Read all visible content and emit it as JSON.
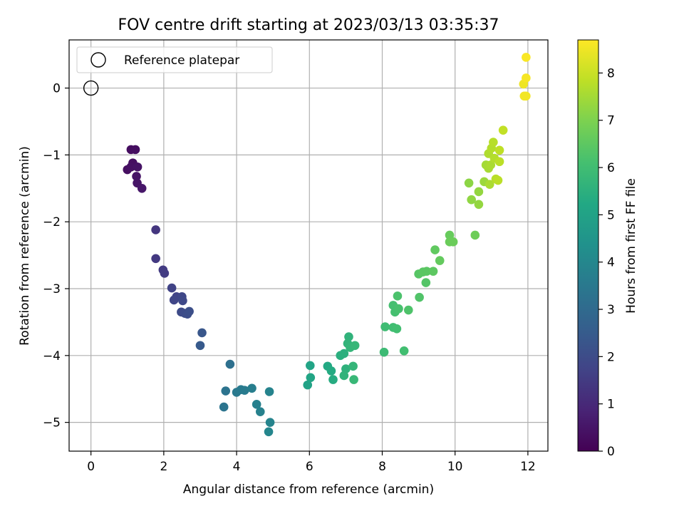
{
  "chart_data": {
    "type": "scatter",
    "title": "FOV centre drift starting at 2023/03/13 03:35:37",
    "xlabel": "Angular distance from reference (arcmin)",
    "ylabel": "Rotation from reference (arcmin)",
    "xlim": [
      -0.6,
      12.55
    ],
    "ylim": [
      -5.43,
      0.72
    ],
    "xticks": [
      0,
      2,
      4,
      6,
      8,
      10,
      12
    ],
    "yticks": [
      0,
      -1,
      -2,
      -3,
      -4,
      -5
    ],
    "xtick_labels": [
      "0",
      "2",
      "4",
      "6",
      "8",
      "10",
      "12"
    ],
    "ytick_labels": [
      "0",
      "−1",
      "−2",
      "−3",
      "−4",
      "−5"
    ],
    "grid": true,
    "legend": {
      "placement": "top-left",
      "entries": [
        "Reference platepar"
      ]
    },
    "reference_point": {
      "x": 0,
      "y": 0
    },
    "colorbar": {
      "label": "Hours from first FF file",
      "colormap": "viridis",
      "range": [
        0,
        8.7
      ],
      "ticks": [
        0,
        1,
        2,
        3,
        4,
        5,
        6,
        7,
        8
      ],
      "tick_labels": [
        "0",
        "1",
        "2",
        "3",
        "4",
        "5",
        "6",
        "7",
        "8"
      ]
    },
    "points": [
      {
        "x": 1.1,
        "y": -0.92,
        "c": 0.3
      },
      {
        "x": 1.22,
        "y": -0.92,
        "c": 0.32
      },
      {
        "x": 1.15,
        "y": -1.12,
        "c": 0.35
      },
      {
        "x": 1.0,
        "y": -1.22,
        "c": 0.35
      },
      {
        "x": 1.1,
        "y": -1.18,
        "c": 0.4
      },
      {
        "x": 1.28,
        "y": -1.18,
        "c": 0.45
      },
      {
        "x": 1.25,
        "y": -1.32,
        "c": 0.48
      },
      {
        "x": 1.27,
        "y": -1.42,
        "c": 0.5
      },
      {
        "x": 1.4,
        "y": -1.5,
        "c": 0.55
      },
      {
        "x": 1.78,
        "y": -2.12,
        "c": 1.35
      },
      {
        "x": 1.78,
        "y": -2.55,
        "c": 1.45
      },
      {
        "x": 1.98,
        "y": -2.72,
        "c": 1.5
      },
      {
        "x": 2.02,
        "y": -2.77,
        "c": 1.55
      },
      {
        "x": 2.22,
        "y": -2.99,
        "c": 1.7
      },
      {
        "x": 2.35,
        "y": -3.12,
        "c": 1.75
      },
      {
        "x": 2.28,
        "y": -3.17,
        "c": 1.8
      },
      {
        "x": 2.5,
        "y": -3.12,
        "c": 1.85
      },
      {
        "x": 2.52,
        "y": -3.18,
        "c": 1.9
      },
      {
        "x": 2.48,
        "y": -3.35,
        "c": 1.95
      },
      {
        "x": 2.58,
        "y": -3.37,
        "c": 2.0
      },
      {
        "x": 2.65,
        "y": -3.38,
        "c": 2.05
      },
      {
        "x": 2.7,
        "y": -3.34,
        "c": 2.1
      },
      {
        "x": 3.05,
        "y": -3.66,
        "c": 2.35
      },
      {
        "x": 3.0,
        "y": -3.85,
        "c": 2.45
      },
      {
        "x": 3.82,
        "y": -4.13,
        "c": 3.2
      },
      {
        "x": 3.7,
        "y": -4.53,
        "c": 3.3
      },
      {
        "x": 3.65,
        "y": -4.77,
        "c": 3.35
      },
      {
        "x": 4.0,
        "y": -4.55,
        "c": 3.5
      },
      {
        "x": 4.12,
        "y": -4.51,
        "c": 3.55
      },
      {
        "x": 4.22,
        "y": -4.52,
        "c": 3.6
      },
      {
        "x": 4.42,
        "y": -4.49,
        "c": 3.7
      },
      {
        "x": 4.55,
        "y": -4.73,
        "c": 3.75
      },
      {
        "x": 4.65,
        "y": -4.84,
        "c": 3.8
      },
      {
        "x": 4.9,
        "y": -4.54,
        "c": 3.85
      },
      {
        "x": 4.92,
        "y": -5.0,
        "c": 3.9
      },
      {
        "x": 4.88,
        "y": -5.14,
        "c": 3.95
      },
      {
        "x": 5.95,
        "y": -4.44,
        "c": 5.0
      },
      {
        "x": 6.02,
        "y": -4.15,
        "c": 5.05
      },
      {
        "x": 6.03,
        "y": -4.33,
        "c": 5.1
      },
      {
        "x": 6.5,
        "y": -4.16,
        "c": 5.25
      },
      {
        "x": 6.6,
        "y": -4.23,
        "c": 5.3
      },
      {
        "x": 6.65,
        "y": -4.36,
        "c": 5.35
      },
      {
        "x": 6.85,
        "y": -4.0,
        "c": 5.45
      },
      {
        "x": 6.95,
        "y": -3.97,
        "c": 5.5
      },
      {
        "x": 7.0,
        "y": -4.2,
        "c": 5.55
      },
      {
        "x": 6.95,
        "y": -4.3,
        "c": 5.6
      },
      {
        "x": 7.08,
        "y": -3.72,
        "c": 5.6
      },
      {
        "x": 7.05,
        "y": -3.82,
        "c": 5.65
      },
      {
        "x": 7.12,
        "y": -3.88,
        "c": 5.7
      },
      {
        "x": 7.2,
        "y": -4.16,
        "c": 5.7
      },
      {
        "x": 7.25,
        "y": -3.85,
        "c": 5.75
      },
      {
        "x": 7.22,
        "y": -4.36,
        "c": 5.8
      },
      {
        "x": 8.05,
        "y": -3.95,
        "c": 5.9
      },
      {
        "x": 8.08,
        "y": -3.57,
        "c": 5.95
      },
      {
        "x": 8.3,
        "y": -3.58,
        "c": 6.0
      },
      {
        "x": 8.4,
        "y": -3.6,
        "c": 6.05
      },
      {
        "x": 8.6,
        "y": -3.93,
        "c": 6.05
      },
      {
        "x": 8.3,
        "y": -3.25,
        "c": 6.1
      },
      {
        "x": 8.35,
        "y": -3.35,
        "c": 6.1
      },
      {
        "x": 8.45,
        "y": -3.3,
        "c": 6.15
      },
      {
        "x": 8.42,
        "y": -3.11,
        "c": 6.2
      },
      {
        "x": 8.72,
        "y": -3.32,
        "c": 6.25
      },
      {
        "x": 9.02,
        "y": -3.13,
        "c": 6.3
      },
      {
        "x": 9.2,
        "y": -2.91,
        "c": 6.35
      },
      {
        "x": 9.0,
        "y": -2.78,
        "c": 6.4
      },
      {
        "x": 9.12,
        "y": -2.75,
        "c": 6.45
      },
      {
        "x": 9.22,
        "y": -2.74,
        "c": 6.45
      },
      {
        "x": 9.4,
        "y": -2.74,
        "c": 6.5
      },
      {
        "x": 9.45,
        "y": -2.42,
        "c": 6.55
      },
      {
        "x": 9.58,
        "y": -2.58,
        "c": 6.6
      },
      {
        "x": 9.85,
        "y": -2.2,
        "c": 6.65
      },
      {
        "x": 9.85,
        "y": -2.3,
        "c": 6.7
      },
      {
        "x": 9.95,
        "y": -2.3,
        "c": 6.72
      },
      {
        "x": 10.55,
        "y": -2.2,
        "c": 6.75
      },
      {
        "x": 10.38,
        "y": -1.42,
        "c": 7.2
      },
      {
        "x": 10.45,
        "y": -1.67,
        "c": 7.25
      },
      {
        "x": 10.65,
        "y": -1.55,
        "c": 7.3
      },
      {
        "x": 10.65,
        "y": -1.74,
        "c": 7.3
      },
      {
        "x": 10.8,
        "y": -1.4,
        "c": 7.4
      },
      {
        "x": 10.85,
        "y": -1.15,
        "c": 7.5
      },
      {
        "x": 10.92,
        "y": -1.2,
        "c": 7.55
      },
      {
        "x": 10.98,
        "y": -1.15,
        "c": 7.6
      },
      {
        "x": 10.95,
        "y": -1.44,
        "c": 7.6
      },
      {
        "x": 10.92,
        "y": -0.98,
        "c": 7.65
      },
      {
        "x": 11.0,
        "y": -0.9,
        "c": 7.7
      },
      {
        "x": 11.05,
        "y": -0.81,
        "c": 7.75
      },
      {
        "x": 11.08,
        "y": -1.05,
        "c": 7.7
      },
      {
        "x": 11.12,
        "y": -1.36,
        "c": 7.75
      },
      {
        "x": 11.18,
        "y": -1.38,
        "c": 7.8
      },
      {
        "x": 11.22,
        "y": -1.1,
        "c": 7.8
      },
      {
        "x": 11.22,
        "y": -0.93,
        "c": 7.85
      },
      {
        "x": 11.32,
        "y": -0.63,
        "c": 7.9
      },
      {
        "x": 11.88,
        "y": 0.06,
        "c": 8.5
      },
      {
        "x": 11.9,
        "y": -0.12,
        "c": 8.55
      },
      {
        "x": 11.95,
        "y": -0.12,
        "c": 8.55
      },
      {
        "x": 11.95,
        "y": 0.15,
        "c": 8.6
      },
      {
        "x": 11.95,
        "y": 0.46,
        "c": 8.65
      }
    ]
  }
}
